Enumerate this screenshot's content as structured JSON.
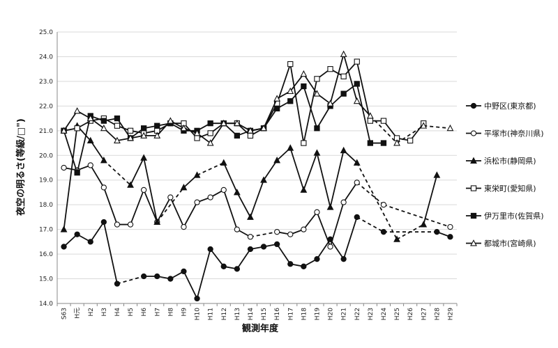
{
  "chart_data": {
    "type": "line",
    "title": "",
    "xlabel": "観測年度",
    "ylabel": "夜空の明るさ(等級/□\")",
    "ylim": [
      14.0,
      25.0
    ],
    "yticks": [
      "14.0",
      "15.0",
      "16.0",
      "17.0",
      "18.0",
      "19.0",
      "20.0",
      "21.0",
      "22.0",
      "23.0",
      "24.0",
      "25.0"
    ],
    "grid": "horizontal",
    "legend_position": "right",
    "categories": [
      "S63",
      "H元",
      "H2",
      "H3",
      "H4",
      "H5",
      "H6",
      "H7",
      "H8",
      "H9",
      "H10",
      "H11",
      "H12",
      "H13",
      "H14",
      "H15",
      "H16",
      "H17",
      "H18",
      "H19",
      "H20",
      "H21",
      "H22",
      "H23",
      "H24",
      "H25",
      "H26",
      "H27",
      "H28",
      "H29"
    ],
    "series": [
      {
        "name": "中野区(東京都)",
        "marker": "filled-circle",
        "values": [
          16.3,
          16.8,
          16.5,
          17.3,
          14.8,
          null,
          15.1,
          15.1,
          15.0,
          15.3,
          14.2,
          16.2,
          15.5,
          15.4,
          16.2,
          16.3,
          16.4,
          15.6,
          15.5,
          15.8,
          16.6,
          15.8,
          17.5,
          null,
          16.9,
          null,
          null,
          null,
          16.9,
          16.7
        ]
      },
      {
        "name": "平塚市(神奈川県)",
        "marker": "open-circle",
        "values": [
          19.5,
          19.4,
          19.6,
          18.7,
          17.2,
          17.2,
          18.6,
          17.3,
          18.3,
          17.1,
          18.1,
          18.3,
          18.6,
          17.0,
          16.7,
          null,
          16.9,
          16.8,
          17.0,
          17.7,
          16.3,
          18.1,
          18.9,
          null,
          18.0,
          null,
          null,
          null,
          null,
          17.1
        ]
      },
      {
        "name": "浜松市(静岡県)",
        "marker": "filled-triangle",
        "values": [
          17.0,
          21.2,
          20.6,
          19.8,
          null,
          18.8,
          19.9,
          17.3,
          null,
          18.7,
          19.2,
          null,
          19.7,
          18.5,
          17.5,
          19.0,
          19.8,
          20.3,
          18.6,
          20.1,
          17.9,
          20.2,
          19.7,
          null,
          null,
          16.6,
          null,
          17.2,
          19.2,
          null
        ]
      },
      {
        "name": "東栄町(愛知県)",
        "marker": "open-square",
        "values": [
          21.0,
          21.1,
          21.4,
          21.5,
          21.2,
          21.0,
          20.9,
          21.0,
          21.3,
          21.3,
          20.7,
          20.9,
          21.3,
          21.3,
          20.8,
          21.1,
          22.1,
          23.7,
          20.5,
          23.1,
          23.5,
          23.2,
          23.8,
          21.4,
          21.4,
          20.7,
          20.6,
          21.3,
          null,
          null
        ]
      },
      {
        "name": "伊万里市(佐賀県)",
        "marker": "filled-square",
        "values": [
          21.0,
          19.3,
          21.6,
          21.4,
          21.5,
          20.7,
          21.1,
          21.2,
          21.3,
          21.0,
          21.0,
          21.3,
          21.3,
          20.8,
          21.0,
          21.1,
          21.9,
          22.2,
          22.8,
          21.1,
          22.0,
          22.5,
          22.9,
          20.5,
          20.5,
          null,
          null,
          null,
          null,
          null
        ]
      },
      {
        "name": "都城市(宮崎県)",
        "marker": "open-triangle",
        "values": [
          21.0,
          21.8,
          21.5,
          21.1,
          20.6,
          20.7,
          20.8,
          20.8,
          21.4,
          21.1,
          20.9,
          20.5,
          21.3,
          21.3,
          21.0,
          21.1,
          22.3,
          22.6,
          23.3,
          22.5,
          22.1,
          24.1,
          22.2,
          21.6,
          null,
          20.5,
          null,
          21.2,
          null,
          21.1
        ]
      }
    ]
  }
}
